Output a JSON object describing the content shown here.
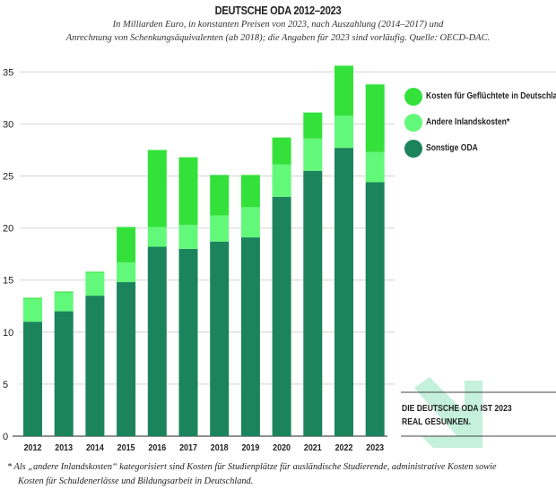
{
  "title": "DEUTSCHE ODA 2012–2023",
  "subtitle_lines": [
    "In Milliarden Euro, in konstanten Preisen von 2023, nach Auszahlung (2014–2017) und",
    "Anrechnung von Schenkungsäquivalenten (ab 2018); die Angaben für 2023 sind vorläufig. Quelle: OECD-DAC."
  ],
  "callout": [
    "DIE DEUTSCHE ODA IST 2023",
    "REAL GESUNKEN."
  ],
  "footnote": [
    "*  Als „andere Inlandskosten“ kategorisiert sind Kosten für Studienplätze für ausländische Studierende, administrative Kosten sowie",
    "Kosten für  Schuldenerlässe und Bildungsarbeit in Deutschland."
  ],
  "colors": {
    "sonstige": "#1b845c",
    "andere": "#62f97a",
    "gefluechtete": "#33e13a",
    "arrow": "#c4f0dc",
    "grid": "#d4d4d4"
  },
  "chart_data": {
    "type": "bar",
    "stacked": true,
    "title": "DEUTSCHE ODA 2012–2023",
    "categories": [
      "2012",
      "2013",
      "2014",
      "2015",
      "2016",
      "2017",
      "2018",
      "2019",
      "2020",
      "2021",
      "2022",
      "2023"
    ],
    "ylim": [
      0,
      35
    ],
    "yticks": [
      0,
      5,
      10,
      15,
      20,
      25,
      30,
      35
    ],
    "grid": true,
    "legend_placement": "top-right",
    "series": [
      {
        "name": "Sonstige ODA",
        "color": "#1b845c",
        "values": [
          11.0,
          12.0,
          13.5,
          14.8,
          18.2,
          18.0,
          18.7,
          19.1,
          23.0,
          25.5,
          27.7,
          24.4
        ]
      },
      {
        "name": "Andere Inlandskosten*",
        "color": "#62f97a",
        "values": [
          2.2,
          1.8,
          2.2,
          1.9,
          1.9,
          2.3,
          2.5,
          2.9,
          3.1,
          3.1,
          3.1,
          2.9
        ]
      },
      {
        "name": "Kosten für Geflüchtete in Deutschland",
        "color": "#33e13a",
        "values": [
          0.1,
          0.1,
          0.1,
          3.4,
          7.4,
          6.5,
          3.9,
          3.1,
          2.6,
          2.5,
          4.8,
          6.5
        ]
      }
    ],
    "legend_order": [
      2,
      1,
      0
    ]
  }
}
